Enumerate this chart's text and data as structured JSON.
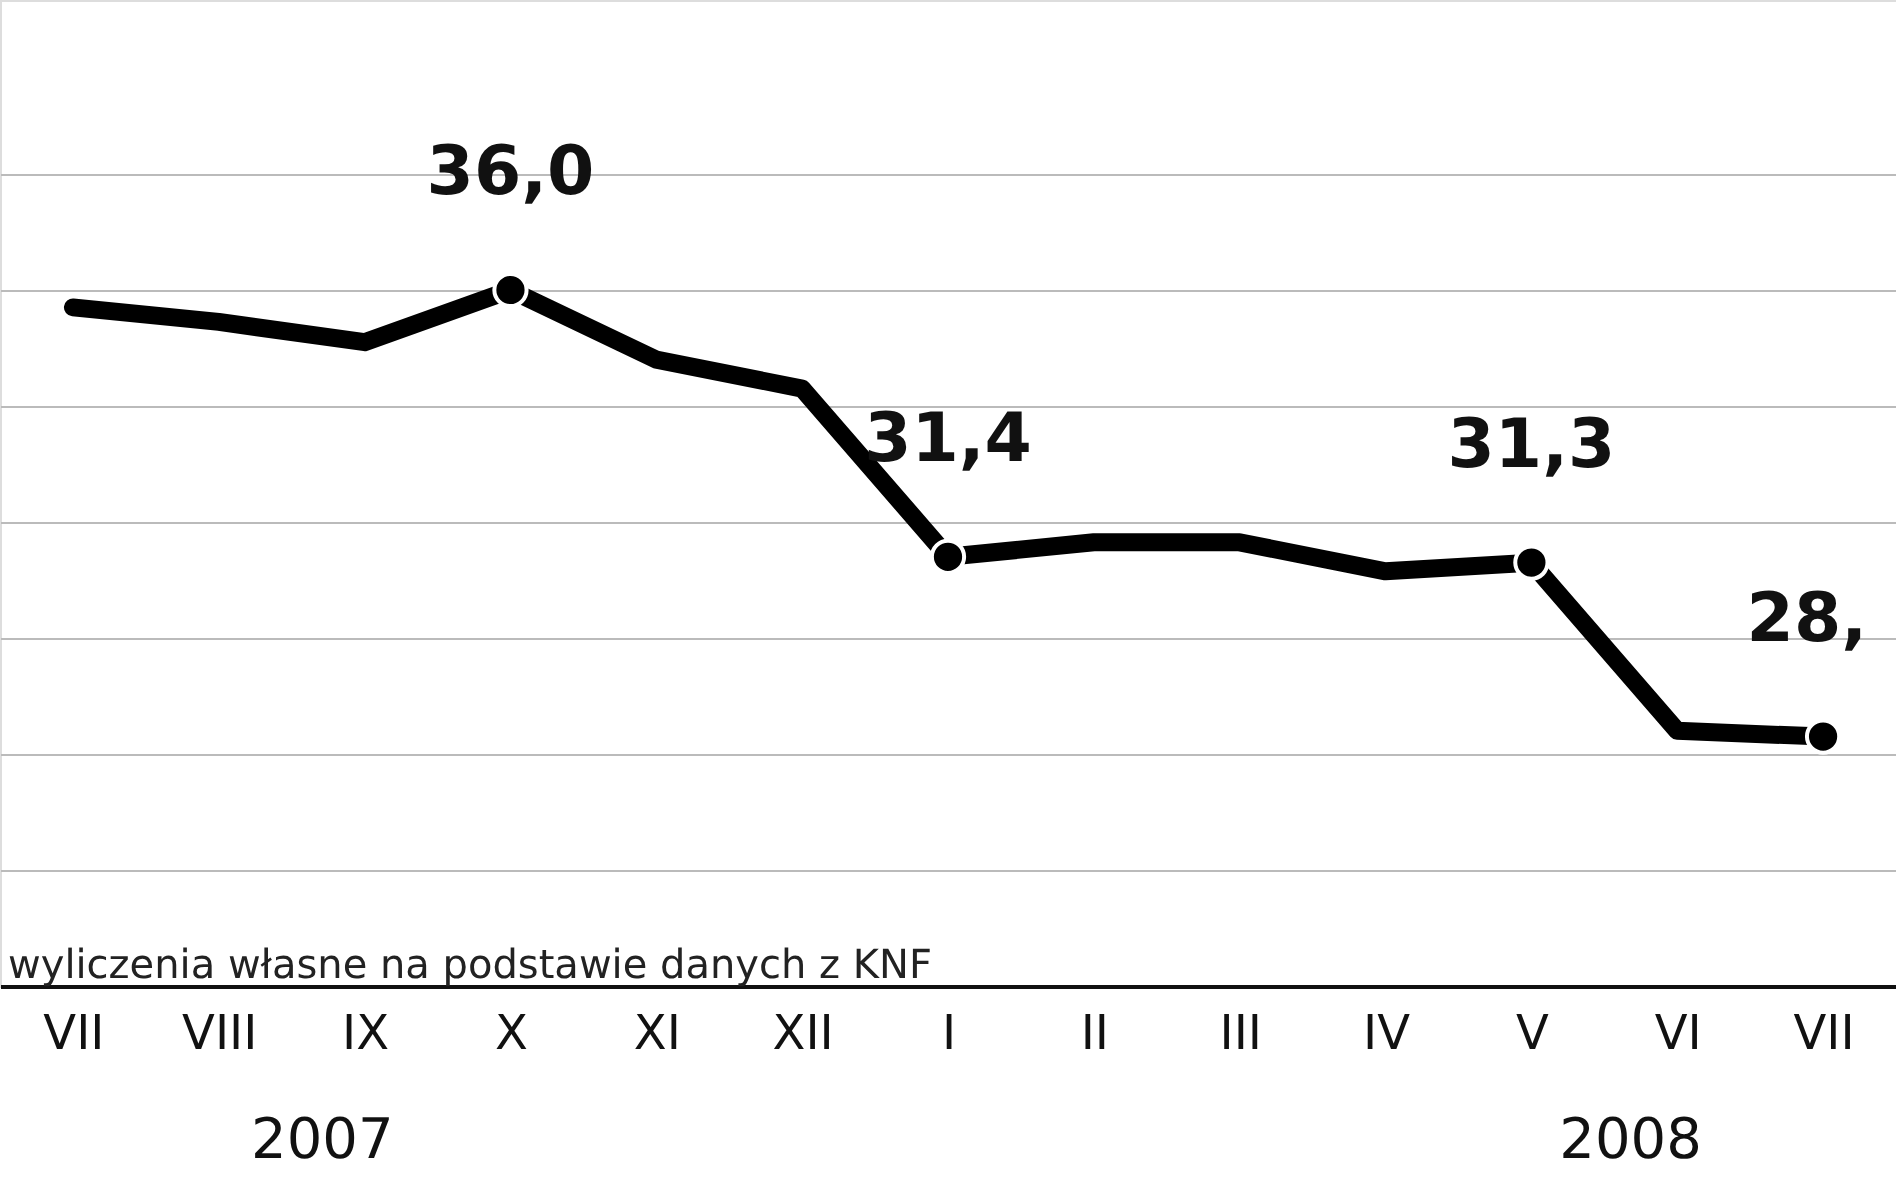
{
  "chart_data": {
    "type": "line",
    "categories": [
      "VII",
      "VIII",
      "IX",
      "X",
      "XI",
      "XII",
      "I",
      "II",
      "III",
      "IV",
      "V",
      "VI",
      "VII"
    ],
    "series": [
      {
        "color": "#000000",
        "values": [
          35.7,
          35.45,
          35.1,
          36.0,
          34.8,
          34.3,
          31.4,
          31.65,
          31.65,
          31.15,
          31.3,
          28.4,
          28.3
        ],
        "value_labels": [
          null,
          null,
          null,
          "36,0",
          null,
          null,
          "31,4",
          null,
          null,
          null,
          "31,3",
          null,
          "28,"
        ]
      }
    ],
    "ylim": [
      24,
      41
    ],
    "yticks": [
      {
        "value": 26,
        "label": null
      },
      {
        "value": 28,
        "label": null
      },
      {
        "value": 30,
        "label": null
      },
      {
        "value": 32,
        "label": null
      },
      {
        "value": 34,
        "label": null
      },
      {
        "value": 36,
        "label": null
      },
      {
        "value": 38,
        "label": null
      }
    ],
    "grid": "y",
    "tick_labels": "x",
    "line_style": "solid",
    "annotations": [
      "wyliczenia własne na podstawie  danych z KNF",
      "2007",
      "2008"
    ]
  }
}
